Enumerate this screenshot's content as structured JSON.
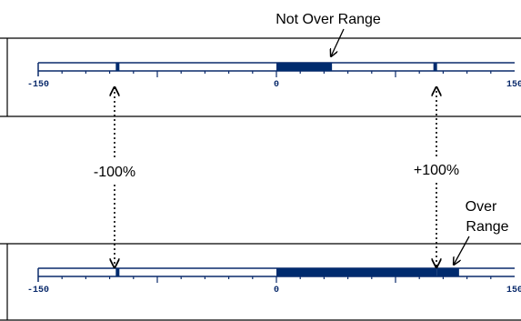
{
  "colors": {
    "scale": "#0a2a6b",
    "bar_fill": "#002b6e",
    "frame": "#000000",
    "annotation": "#000000"
  },
  "scale": {
    "min": -150,
    "max": 150,
    "limit_low": -100,
    "limit_high": 100,
    "tick_labels": [
      "-150",
      "0",
      "150"
    ]
  },
  "labels": {
    "not_over_range": "Not Over Range",
    "minus_100": "-100%",
    "plus_100": "+100%",
    "over_range_line1": "Over",
    "over_range_line2": "Range"
  },
  "bars": [
    {
      "id": "top",
      "fill_from": 0,
      "fill_to": 35,
      "over_range": false
    },
    {
      "id": "bottom",
      "fill_from": 0,
      "fill_to": 115,
      "over_range": true
    }
  ]
}
